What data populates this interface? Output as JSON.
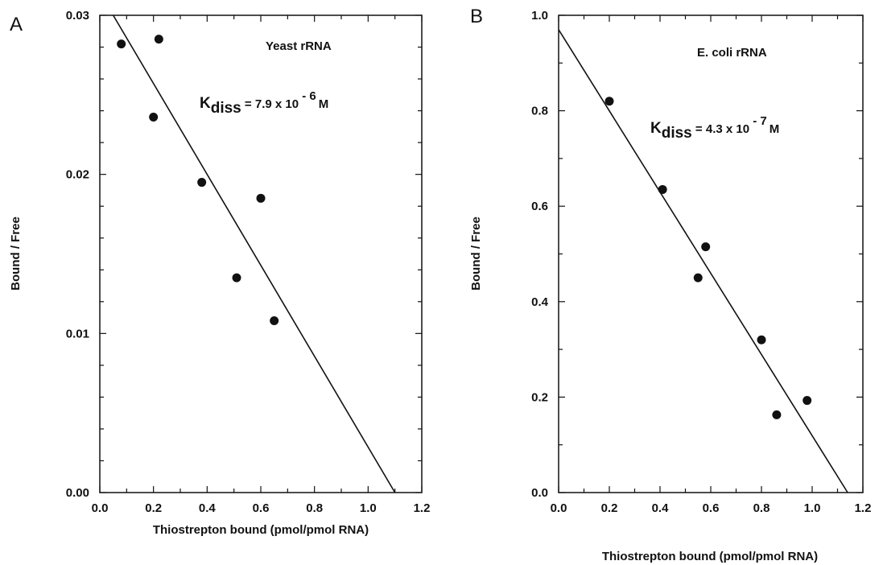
{
  "chart_data": [
    {
      "panel": "A",
      "type": "scatter",
      "xlabel": "Thiostrepton bound (pmol/pmol RNA)",
      "ylabel": "Bound  /  Free",
      "xlim": [
        0.0,
        1.2
      ],
      "ylim": [
        0.0,
        0.03
      ],
      "x_ticks": [
        "0.0",
        "0.2",
        "0.4",
        "0.6",
        "0.8",
        "1.0",
        "1.2"
      ],
      "y_ticks": [
        "0.00",
        "0.01",
        "0.02",
        "0.03"
      ],
      "y_tick_values": [
        0.0,
        0.01,
        0.02,
        0.03
      ],
      "points": [
        {
          "x": 0.08,
          "y": 0.0282
        },
        {
          "x": 0.22,
          "y": 0.0285
        },
        {
          "x": 0.2,
          "y": 0.0236
        },
        {
          "x": 0.38,
          "y": 0.0195
        },
        {
          "x": 0.6,
          "y": 0.0185
        },
        {
          "x": 0.51,
          "y": 0.0135
        },
        {
          "x": 0.65,
          "y": 0.0108
        }
      ],
      "fit_line": {
        "x": [
          0.05,
          1.1
        ],
        "y": [
          0.03,
          0.0
        ]
      },
      "annotation": "Yeast rRNA",
      "kdiss": {
        "K": "K",
        "sub": "diss",
        "equals": " = 7.9 x 10",
        "exp": " - 6",
        "unit": "M"
      },
      "grid": false,
      "legend": "none"
    },
    {
      "panel": "B",
      "type": "scatter",
      "xlabel": "Thiostrepton bound (pmol/pmol RNA)",
      "ylabel": "Bound  /  Free",
      "xlim": [
        0.0,
        1.2
      ],
      "ylim": [
        0.0,
        1.0
      ],
      "x_ticks": [
        "0.0",
        "0.2",
        "0.4",
        "0.6",
        "0.8",
        "1.0",
        "1.2"
      ],
      "y_ticks": [
        "0.0",
        "0.2",
        "0.4",
        "0.6",
        "0.8",
        "1.0"
      ],
      "y_tick_values": [
        0.0,
        0.2,
        0.4,
        0.6,
        0.8,
        1.0
      ],
      "points": [
        {
          "x": 0.2,
          "y": 0.82
        },
        {
          "x": 0.41,
          "y": 0.635
        },
        {
          "x": 0.58,
          "y": 0.515
        },
        {
          "x": 0.55,
          "y": 0.45
        },
        {
          "x": 0.8,
          "y": 0.32
        },
        {
          "x": 0.86,
          "y": 0.163
        },
        {
          "x": 0.98,
          "y": 0.193
        }
      ],
      "fit_line": {
        "x": [
          0.0,
          1.14
        ],
        "y": [
          0.97,
          0.0
        ]
      },
      "annotation": "E. coli rRNA",
      "kdiss": {
        "K": "K",
        "sub": "diss",
        "equals": " = 4.3 x 10",
        "exp": " - 7",
        "unit": "M"
      },
      "grid": false,
      "legend": "none"
    }
  ]
}
